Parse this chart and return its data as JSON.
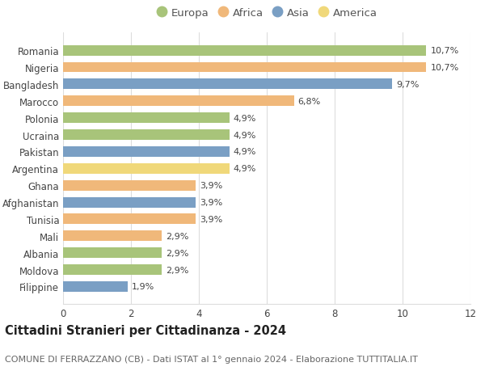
{
  "countries": [
    "Romania",
    "Nigeria",
    "Bangladesh",
    "Marocco",
    "Polonia",
    "Ucraina",
    "Pakistan",
    "Argentina",
    "Ghana",
    "Afghanistan",
    "Tunisia",
    "Mali",
    "Albania",
    "Moldova",
    "Filippine"
  ],
  "values": [
    10.7,
    10.7,
    9.7,
    6.8,
    4.9,
    4.9,
    4.9,
    4.9,
    3.9,
    3.9,
    3.9,
    2.9,
    2.9,
    2.9,
    1.9
  ],
  "labels": [
    "10,7%",
    "10,7%",
    "9,7%",
    "6,8%",
    "4,9%",
    "4,9%",
    "4,9%",
    "4,9%",
    "3,9%",
    "3,9%",
    "3,9%",
    "2,9%",
    "2,9%",
    "2,9%",
    "1,9%"
  ],
  "continents": [
    "Europa",
    "Africa",
    "Asia",
    "Africa",
    "Europa",
    "Europa",
    "Asia",
    "America",
    "Africa",
    "Asia",
    "Africa",
    "Africa",
    "Europa",
    "Europa",
    "Asia"
  ],
  "continent_colors": {
    "Europa": "#a8c47a",
    "Africa": "#f0b87a",
    "Asia": "#7a9fc4",
    "America": "#f0d87a"
  },
  "legend_order": [
    "Europa",
    "Africa",
    "Asia",
    "America"
  ],
  "title": "Cittadini Stranieri per Cittadinanza - 2024",
  "subtitle": "COMUNE DI FERRAZZANO (CB) - Dati ISTAT al 1° gennaio 2024 - Elaborazione TUTTITALIA.IT",
  "xlim": [
    0,
    12
  ],
  "xticks": [
    0,
    2,
    4,
    6,
    8,
    10,
    12
  ],
  "bg_color": "#ffffff",
  "grid_color": "#dddddd",
  "bar_height": 0.62,
  "title_fontsize": 10.5,
  "subtitle_fontsize": 8,
  "label_fontsize": 8,
  "tick_fontsize": 8.5,
  "legend_fontsize": 9.5
}
